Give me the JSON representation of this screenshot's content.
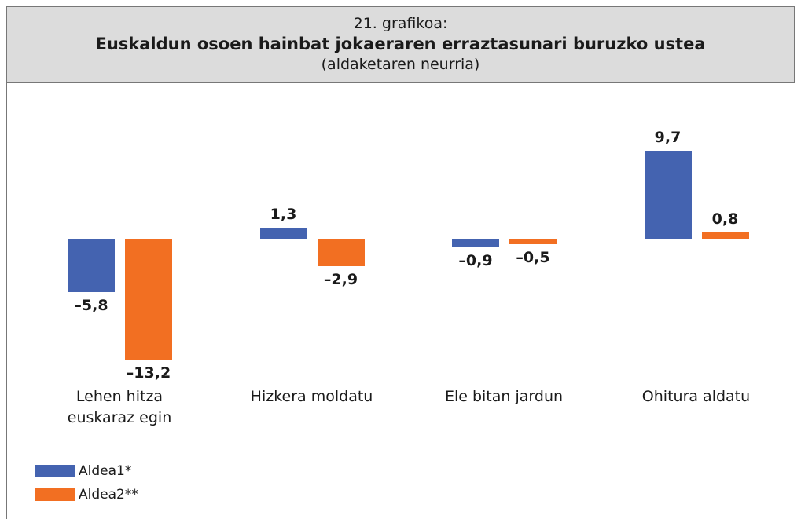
{
  "chart_data": {
    "type": "bar",
    "subtitle_top": "21. grafikoa:",
    "title": "Euskaldun osoen hainbat jokaeraren erraztasunari buruzko ustea",
    "subtitle": "(aldaketaren neurria)",
    "categories": [
      "Lehen hitza euskaraz egin",
      "Hizkera moldatu",
      "Ele bitan jardun",
      "Ohitura aldatu"
    ],
    "series": [
      {
        "name": "Aldea1*",
        "color": "#4463b0",
        "values": [
          -5.8,
          1.3,
          -0.9,
          9.7
        ],
        "value_labels": [
          "–5,8",
          "1,3",
          "–0,9",
          "9,7"
        ]
      },
      {
        "name": "Aldea2**",
        "color": "#f26f22",
        "values": [
          -13.2,
          -2.9,
          -0.5,
          0.8
        ],
        "value_labels": [
          "–13,2",
          "–2,9",
          "–0,5",
          "0,8"
        ]
      }
    ]
  }
}
